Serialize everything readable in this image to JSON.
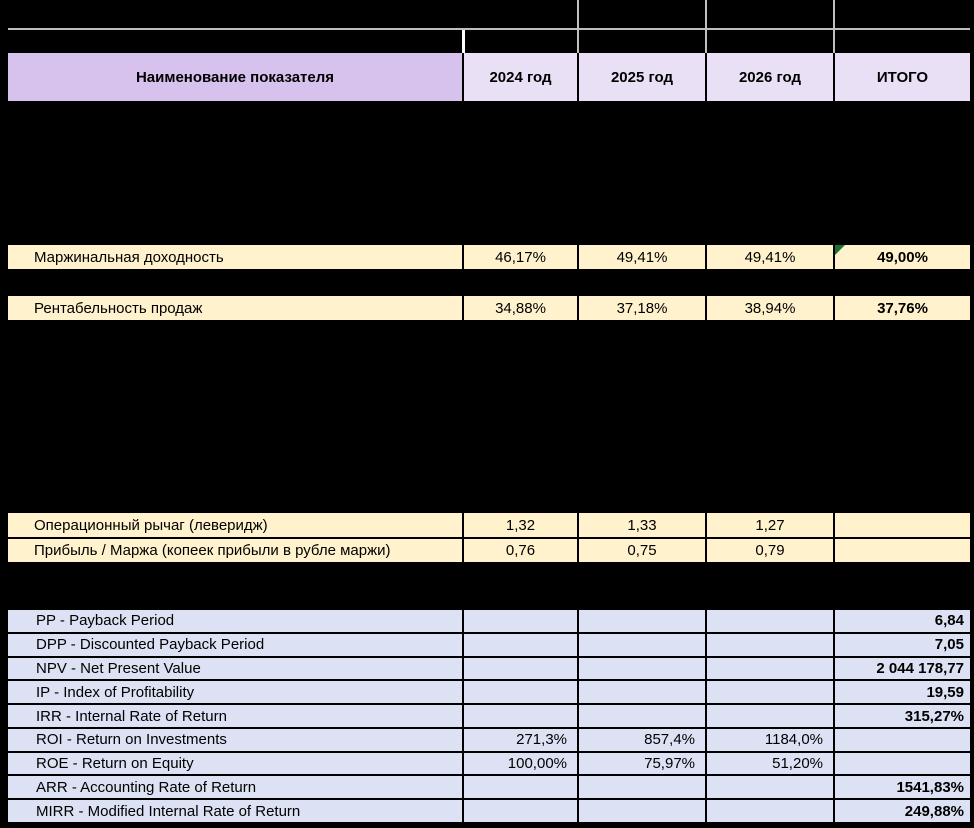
{
  "header": {
    "name_col": "Наименование показателя",
    "year_cols": [
      "2024 год",
      "2025 год",
      "2026 год"
    ],
    "total_col": "ИТОГО"
  },
  "profitability_rows": [
    {
      "label": "Маржинальная доходность",
      "values": [
        "46,17%",
        "49,41%",
        "49,41%"
      ],
      "total": "49,00%",
      "flag_icon": "error-check-triangle"
    },
    {
      "label": "Рентабельность продаж",
      "values": [
        "34,88%",
        "37,18%",
        "38,94%"
      ],
      "total": "37,76%"
    }
  ],
  "leverage_rows": [
    {
      "label": "Операционный рычаг (леверидж)",
      "values": [
        "1,32",
        "1,33",
        "1,27"
      ],
      "total": ""
    },
    {
      "label": "Прибыль / Маржа (копеек прибыли в рубле маржи)",
      "values": [
        "0,76",
        "0,75",
        "0,79"
      ],
      "total": ""
    }
  ],
  "investment_rows": [
    {
      "label": "PP - Payback Period",
      "values": [
        "",
        "",
        ""
      ],
      "total": "6,84"
    },
    {
      "label": "DPP - Discounted Payback Period",
      "values": [
        "",
        "",
        ""
      ],
      "total": "7,05"
    },
    {
      "label": "NPV - Net Present Value",
      "values": [
        "",
        "",
        ""
      ],
      "total": "2 044 178,77"
    },
    {
      "label": "IP - Index of Profitability",
      "values": [
        "",
        "",
        ""
      ],
      "total": "19,59"
    },
    {
      "label": "IRR - Internal Rate of Return",
      "values": [
        "",
        "",
        ""
      ],
      "total": "315,27%"
    },
    {
      "label": "ROI - Return on Investments",
      "values": [
        "271,3%",
        "857,4%",
        "1184,0%"
      ],
      "total": ""
    },
    {
      "label": "ROE - Return on Equity",
      "values": [
        "100,00%",
        "75,97%",
        "51,20%"
      ],
      "total": ""
    },
    {
      "label": "ARR - Accounting Rate of Return",
      "values": [
        "",
        "",
        ""
      ],
      "total": "1541,83%"
    },
    {
      "label": "MIRR - Modified Internal Rate of Return",
      "values": [
        "",
        "",
        ""
      ],
      "total": "249,88%"
    }
  ],
  "colors": {
    "header_name_bg": "#D6C2EC",
    "header_year_bg": "#EAE0F6",
    "highlight_yellow_bg": "#FFF2CC",
    "metrics_blue_bg": "#DCE2F3",
    "grid_black": "#000000",
    "top_divider_gray": "#BFBFBF",
    "top_divider_white": "#FFFFFF",
    "flag_green": "#1D6F35",
    "text": "#000000"
  }
}
